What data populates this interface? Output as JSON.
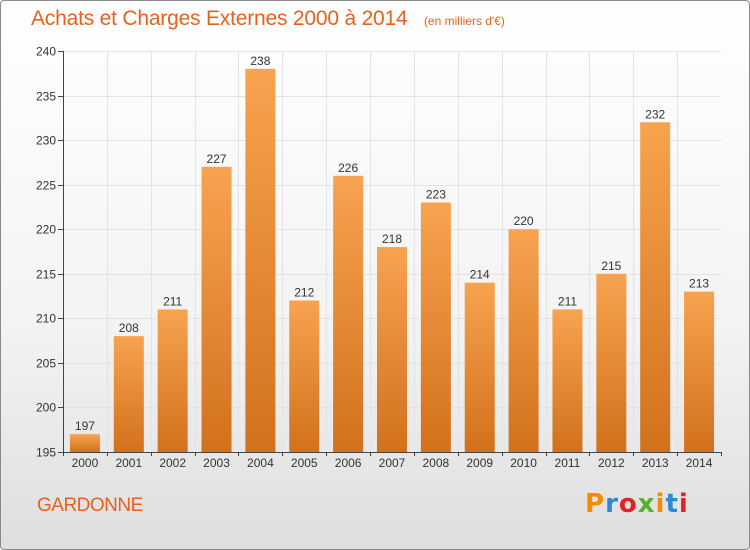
{
  "chart_data": {
    "type": "bar",
    "title": "Achats et Charges Externes 2000 à 2014",
    "subtitle": "(en milliers d'€)",
    "categories": [
      "2000",
      "2001",
      "2002",
      "2003",
      "2004",
      "2005",
      "2006",
      "2007",
      "2008",
      "2009",
      "2010",
      "2011",
      "2012",
      "2013",
      "2014"
    ],
    "values": [
      197,
      208,
      211,
      227,
      238,
      212,
      226,
      218,
      223,
      214,
      220,
      211,
      215,
      232,
      213
    ],
    "ylim": [
      195,
      240
    ],
    "yticks": [
      195,
      200,
      205,
      210,
      215,
      220,
      225,
      230,
      235,
      240
    ],
    "grid": true,
    "bar_color_top": "#f7a350",
    "bar_color_bottom": "#d2711c",
    "grid_color": "#e3e3e3"
  },
  "footer": {
    "place_name": "GARDONNE",
    "logo_text": "Proxiti",
    "logo_colors": [
      "#f28c00",
      "#2a8ad3",
      "#e02424",
      "#58b030",
      "#f28c00",
      "#2a8ad3",
      "#e02424"
    ]
  }
}
